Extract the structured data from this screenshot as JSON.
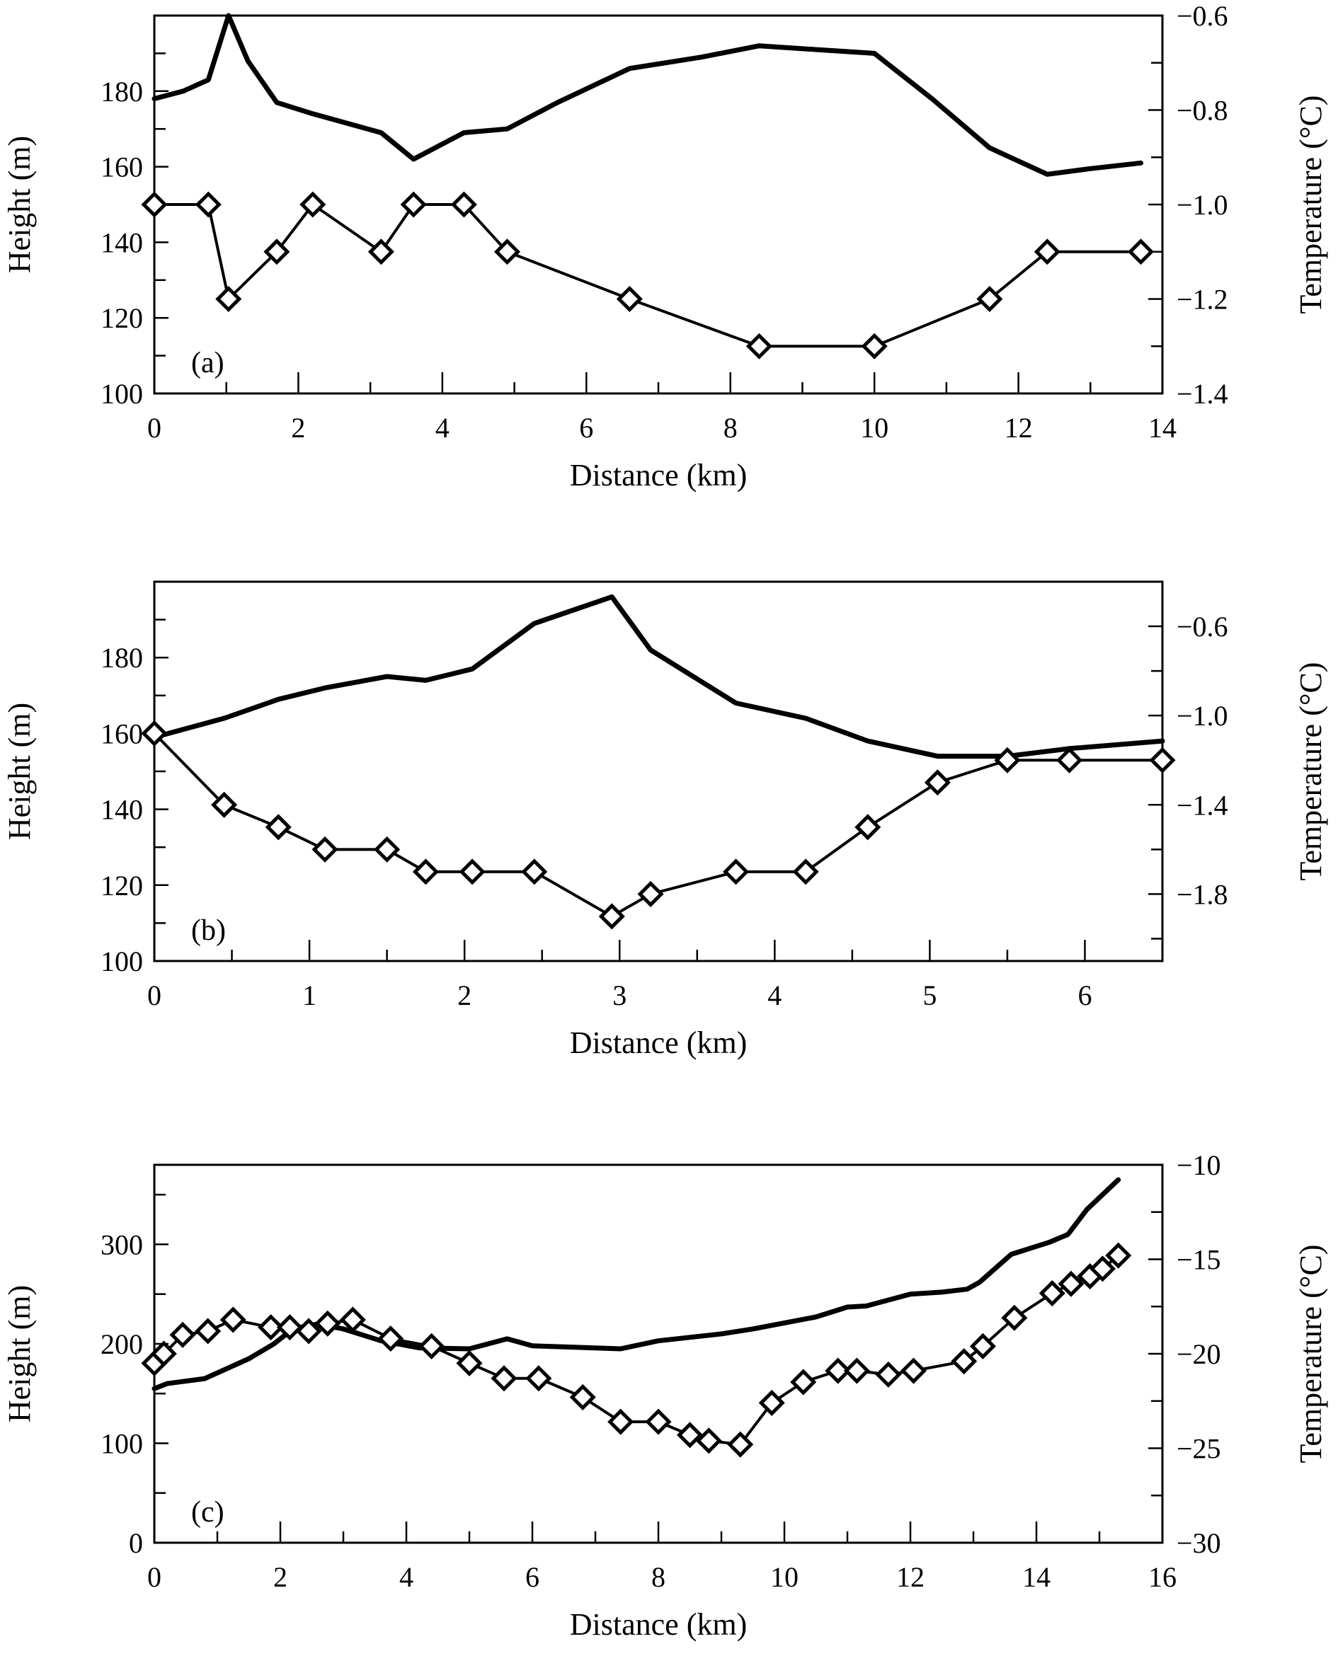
{
  "chart_data": [
    {
      "type": "line",
      "panel_label": "(a)",
      "xlabel": "Distance (km)",
      "ylabel": "Height (m)",
      "y2label": "Temperature (°C)",
      "xlim": [
        0,
        14
      ],
      "ylim": [
        100,
        200
      ],
      "y2lim": [
        -1.4,
        -0.6
      ],
      "x_ticks": [
        0,
        2,
        4,
        6,
        8,
        10,
        12,
        14
      ],
      "x_tick_labels": [
        "0",
        "2",
        "4",
        "6",
        "8",
        "10",
        "12",
        "14"
      ],
      "y_ticks": [
        100,
        120,
        140,
        160,
        180
      ],
      "y_tick_labels": [
        "100",
        "120",
        "140",
        "160",
        "180"
      ],
      "y2_ticks": [
        -1.4,
        -1.2,
        -1.0,
        -0.8,
        -0.6
      ],
      "y2_tick_labels": [
        "−1.4",
        "−1.2",
        "−1.0",
        "−0.8",
        "−0.6"
      ],
      "series": [
        {
          "name": "Height",
          "axis": "left",
          "marker": "none",
          "x": [
            0,
            0.4,
            0.75,
            1.03,
            1.3,
            1.7,
            2.2,
            3.15,
            3.6,
            4.3,
            4.9,
            5.6,
            6.6,
            7.6,
            8.4,
            9.2,
            10,
            10.8,
            11.6,
            12.4,
            13.0,
            13.7
          ],
          "y": [
            178,
            180,
            183,
            200,
            188,
            177,
            174,
            169,
            162,
            169,
            170,
            177,
            186,
            189,
            192,
            191,
            190,
            178,
            165,
            158,
            159.5,
            161
          ]
        },
        {
          "name": "Temperature",
          "axis": "right",
          "marker": "diamond",
          "x": [
            0,
            0.75,
            1.03,
            1.7,
            2.2,
            3.15,
            3.6,
            4.3,
            4.9,
            6.6,
            8.4,
            10,
            11.6,
            12.4,
            13.7
          ],
          "y": [
            -1.0,
            -1.0,
            -1.2,
            -1.1,
            -1.0,
            -1.1,
            -1.0,
            -1.0,
            -1.1,
            -1.2,
            -1.3,
            -1.3,
            -1.2,
            -1.1,
            -1.1
          ]
        }
      ]
    },
    {
      "type": "line",
      "panel_label": "(b)",
      "xlabel": "Distance (km)",
      "ylabel": "Height (m)",
      "y2label": "Temperature (°C)",
      "xlim": [
        0,
        6.5
      ],
      "ylim": [
        100,
        200
      ],
      "y2lim": [
        -2.1,
        -0.4
      ],
      "x_ticks": [
        0,
        1,
        2,
        3,
        4,
        5,
        6
      ],
      "x_tick_labels": [
        "0",
        "1",
        "2",
        "3",
        "4",
        "5",
        "6"
      ],
      "y_ticks": [
        100,
        120,
        140,
        160,
        180
      ],
      "y_tick_labels": [
        "100",
        "120",
        "140",
        "160",
        "180"
      ],
      "y2_ticks": [
        -1.8,
        -1.4,
        -1.0,
        -0.6
      ],
      "y2_tick_labels": [
        "−1.8",
        "−1.4",
        "−1.0",
        "−0.6"
      ],
      "series": [
        {
          "name": "Height",
          "axis": "left",
          "marker": "none",
          "x": [
            0,
            0.45,
            0.8,
            1.1,
            1.5,
            1.75,
            2.05,
            2.45,
            2.95,
            3.2,
            3.75,
            4.2,
            4.6,
            5.05,
            5.5,
            5.9,
            6.5
          ],
          "y": [
            159,
            164,
            169,
            172,
            175,
            174,
            177,
            189,
            196,
            182,
            168,
            164,
            158,
            154,
            154,
            156,
            158
          ]
        },
        {
          "name": "Temperature",
          "axis": "right",
          "marker": "diamond",
          "x": [
            0,
            0.45,
            0.8,
            1.1,
            1.5,
            1.75,
            2.05,
            2.45,
            2.95,
            3.2,
            3.75,
            4.2,
            4.6,
            5.05,
            5.5,
            5.9,
            6.5
          ],
          "y": [
            -1.08,
            -1.4,
            -1.5,
            -1.6,
            -1.6,
            -1.7,
            -1.7,
            -1.7,
            -1.9,
            -1.8,
            -1.7,
            -1.7,
            -1.5,
            -1.3,
            -1.2,
            -1.2,
            -1.2
          ]
        }
      ]
    },
    {
      "type": "line",
      "panel_label": "(c)",
      "xlabel": "Distance (km)",
      "ylabel": "Height (m)",
      "y2label": "Temperature (°C)",
      "xlim": [
        0,
        16
      ],
      "ylim": [
        0,
        380
      ],
      "y2lim": [
        -30,
        -10
      ],
      "x_ticks": [
        0,
        2,
        4,
        6,
        8,
        10,
        12,
        14,
        16
      ],
      "x_tick_labels": [
        "0",
        "2",
        "4",
        "6",
        "8",
        "10",
        "12",
        "14",
        "16"
      ],
      "y_ticks": [
        0,
        100,
        200,
        300
      ],
      "y_tick_labels": [
        "0",
        "100",
        "200",
        "300"
      ],
      "y2_ticks": [
        -30,
        -25,
        -20,
        -15,
        -10
      ],
      "y2_tick_labels": [
        "−30",
        "−25",
        "−20",
        "−15",
        "−10"
      ],
      "series": [
        {
          "name": "Height",
          "axis": "left",
          "marker": "none",
          "x": [
            0,
            0.2,
            0.8,
            1.5,
            1.9,
            2.2,
            2.6,
            3.0,
            3.6,
            4.2,
            5.0,
            5.6,
            6.0,
            6.5,
            7.4,
            8.0,
            9.0,
            9.5,
            10.5,
            11.0,
            11.3,
            12.0,
            12.5,
            12.9,
            13.1,
            13.6,
            14.2,
            14.5,
            14.8,
            15.3
          ],
          "y": [
            155,
            160,
            165,
            185,
            200,
            215,
            220,
            215,
            203,
            196,
            195,
            205,
            198,
            197,
            195,
            203,
            210,
            215,
            227,
            237,
            238,
            250,
            252,
            255,
            262,
            290,
            302,
            310,
            335,
            365
          ]
        },
        {
          "name": "Temperature",
          "axis": "right",
          "marker": "diamond",
          "x": [
            0,
            0.15,
            0.45,
            0.85,
            1.25,
            1.85,
            2.15,
            2.45,
            2.75,
            3.15,
            3.75,
            4.4,
            5.0,
            5.55,
            6.1,
            6.8,
            7.4,
            8.0,
            8.5,
            8.8,
            9.3,
            9.8,
            10.3,
            10.85,
            11.15,
            11.65,
            12.05,
            12.85,
            13.15,
            13.65,
            14.25,
            14.55,
            14.85,
            15.05,
            15.3
          ],
          "y": [
            -20.5,
            -20.0,
            -19.0,
            -18.8,
            -18.2,
            -18.6,
            -18.6,
            -18.8,
            -18.4,
            -18.2,
            -19.2,
            -19.6,
            -20.5,
            -21.3,
            -21.3,
            -22.3,
            -23.6,
            -23.6,
            -24.3,
            -24.6,
            -24.8,
            -22.6,
            -21.5,
            -20.9,
            -20.9,
            -21.1,
            -20.9,
            -20.4,
            -19.6,
            -18.1,
            -16.8,
            -16.3,
            -15.9,
            -15.5,
            -14.8
          ]
        }
      ]
    }
  ]
}
